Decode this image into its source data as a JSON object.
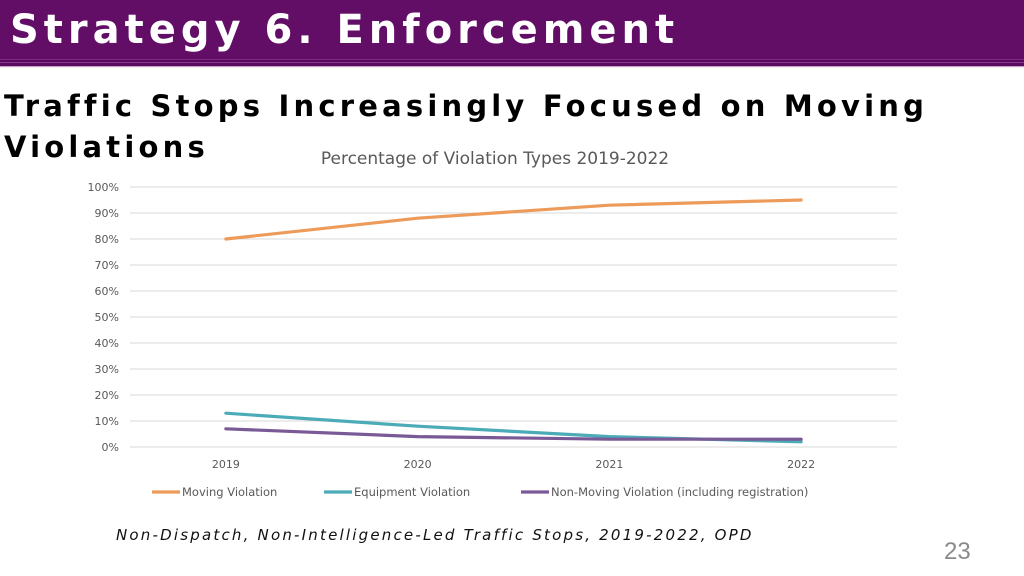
{
  "slide": {
    "header_title": "Strategy 6. Enforcement",
    "heading": "Traffic Stops Increasingly Focused on Moving Violations",
    "footer_note": "Non-Dispatch, Non-Intelligence-Led Traffic Stops, 2019-2022, OPD",
    "page_number": "23",
    "colors": {
      "header_band": "#620e67",
      "heading_text": "#000000",
      "header_text": "#ffffff"
    }
  },
  "chart_data": {
    "type": "line",
    "title": "Percentage of Violation Types 2019-2022",
    "xlabel": "",
    "ylabel": "",
    "categories": [
      "2019",
      "2020",
      "2021",
      "2022"
    ],
    "ylim": [
      0,
      100
    ],
    "yticks": [
      "0%",
      "10%",
      "20%",
      "30%",
      "40%",
      "50%",
      "60%",
      "70%",
      "80%",
      "90%",
      "100%"
    ],
    "ytick_values": [
      0,
      10,
      20,
      30,
      40,
      50,
      60,
      70,
      80,
      90,
      100
    ],
    "grid": true,
    "legend_position": "bottom",
    "series": [
      {
        "name": "Moving Violation",
        "color": "#ed9b5a",
        "values": [
          80,
          88,
          93,
          95
        ]
      },
      {
        "name": "Equipment Violation",
        "color": "#4bacb8",
        "values": [
          13,
          8,
          4,
          2
        ]
      },
      {
        "name": "Non-Moving Violation (including registration)",
        "color": "#7a5a96",
        "values": [
          7,
          4,
          3,
          3
        ]
      }
    ]
  }
}
